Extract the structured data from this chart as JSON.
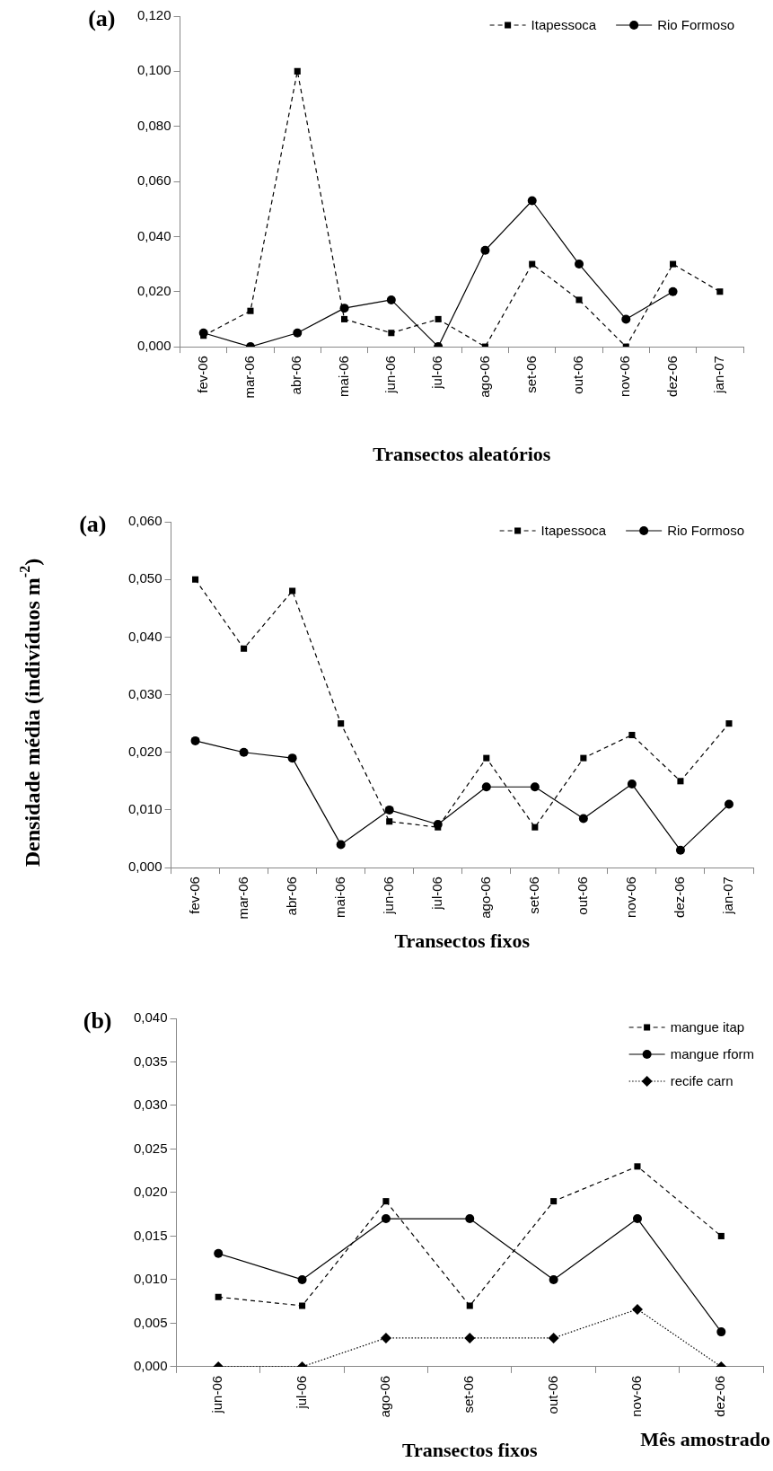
{
  "chart_data": [
    {
      "type": "line",
      "title": "(a)",
      "xlabel": "Transectos aleatórios",
      "categories": [
        "fev-06",
        "mar-06",
        "abr-06",
        "mai-06",
        "jun-06",
        "jul-06",
        "ago-06",
        "set-06",
        "out-06",
        "nov-06",
        "dez-06",
        "jan-07"
      ],
      "series": [
        {
          "name": "Itapessoca",
          "color": "#000000",
          "marker": "square",
          "line_style": "dashed",
          "values": [
            0.004,
            0.013,
            0.1,
            0.01,
            0.005,
            0.01,
            0.0,
            0.03,
            0.017,
            0.0,
            0.03,
            0.02
          ]
        },
        {
          "name": "Rio Formoso",
          "color": "#000000",
          "marker": "circle",
          "line_style": "solid",
          "values": [
            0.005,
            0.0,
            0.005,
            0.014,
            0.017,
            0.0,
            0.035,
            0.053,
            0.03,
            0.01,
            0.02,
            null
          ]
        }
      ],
      "ylim": [
        0,
        0.12
      ],
      "yticks": [
        {
          "value": 0,
          "label": "0,000"
        },
        {
          "value": 0.02,
          "label": "0,020"
        },
        {
          "value": 0.04,
          "label": "0,040"
        },
        {
          "value": 0.06,
          "label": "0,060"
        },
        {
          "value": 0.08,
          "label": "0,080"
        },
        {
          "value": 0.1,
          "label": "0,100"
        },
        {
          "value": 0.12,
          "label": "0,120"
        }
      ],
      "legend": "top right"
    },
    {
      "type": "line",
      "title": "(a)",
      "xlabel": "Transectos fixos",
      "ylabel": "Densidade média (indivíduos m$^{-2}$)",
      "categories": [
        "fev-06",
        "mar-06",
        "abr-06",
        "mai-06",
        "jun-06",
        "jul-06",
        "ago-06",
        "set-06",
        "out-06",
        "nov-06",
        "dez-06",
        "jan-07"
      ],
      "series": [
        {
          "name": "Itapessoca",
          "color": "#000000",
          "marker": "square",
          "line_style": "dashed",
          "values": [
            0.05,
            0.038,
            0.048,
            0.025,
            0.008,
            0.007,
            0.019,
            0.007,
            0.019,
            0.023,
            0.015,
            0.025
          ]
        },
        {
          "name": "Rio Formoso",
          "color": "#000000",
          "marker": "circle",
          "line_style": "solid",
          "values": [
            0.022,
            0.02,
            0.019,
            0.004,
            0.01,
            0.0075,
            0.014,
            0.014,
            0.0085,
            0.0145,
            0.003,
            0.011
          ]
        }
      ],
      "ylim": [
        0,
        0.06
      ],
      "yticks": [
        {
          "value": 0,
          "label": "0,000"
        },
        {
          "value": 0.01,
          "label": "0,010"
        },
        {
          "value": 0.02,
          "label": "0,020"
        },
        {
          "value": 0.03,
          "label": "0,030"
        },
        {
          "value": 0.04,
          "label": "0,040"
        },
        {
          "value": 0.05,
          "label": "0,050"
        },
        {
          "value": 0.06,
          "label": "0,060"
        }
      ],
      "legend": "top right"
    },
    {
      "type": "line",
      "title": "(b)",
      "xlabel": "Transectos fixos",
      "annotations": [
        "Mês amostrado"
      ],
      "categories": [
        "jun-06",
        "jul-06",
        "ago-06",
        "set-06",
        "out-06",
        "nov-06",
        "dez-06"
      ],
      "series": [
        {
          "name": "mangue itap",
          "color": "#000000",
          "marker": "square",
          "line_style": "dashed",
          "values": [
            0.008,
            0.007,
            0.019,
            0.007,
            0.019,
            0.023,
            0.015
          ]
        },
        {
          "name": "mangue rform",
          "color": "#000000",
          "marker": "circle",
          "line_style": "solid",
          "values": [
            0.013,
            0.01,
            0.017,
            0.017,
            0.01,
            0.017,
            0.004
          ]
        },
        {
          "name": "recife carn",
          "color": "#000000",
          "marker": "diamond",
          "line_style": "dotted",
          "values": [
            0,
            0,
            0.0033,
            0.0033,
            0.0033,
            0.0066,
            0
          ]
        }
      ],
      "ylim": [
        0,
        0.04
      ],
      "yticks": [
        {
          "value": 0,
          "label": "0,000"
        },
        {
          "value": 0.005,
          "label": "0,005"
        },
        {
          "value": 0.01,
          "label": "0,010"
        },
        {
          "value": 0.015,
          "label": "0,015"
        },
        {
          "value": 0.02,
          "label": "0,020"
        },
        {
          "value": 0.025,
          "label": "0,025"
        },
        {
          "value": 0.03,
          "label": "0,030"
        },
        {
          "value": 0.035,
          "label": "0,035"
        },
        {
          "value": 0.04,
          "label": "0,040"
        }
      ],
      "legend": "top right"
    }
  ]
}
